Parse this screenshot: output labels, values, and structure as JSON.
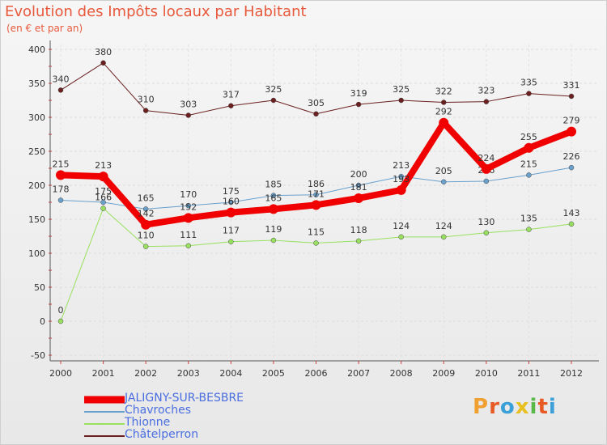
{
  "title": "Evolution des Impôts locaux par Habitant",
  "subtitle": "(en € et par an)",
  "brand": {
    "text": "Proxiti",
    "colors": [
      "#f0a030",
      "#e85a24",
      "#3ca0d8",
      "#e8c020",
      "#58b848",
      "#e85a24",
      "#3ca0d8"
    ]
  },
  "chart_data": {
    "type": "line",
    "title": "Evolution des Impôts locaux par Habitant",
    "subtitle": "(en € et par an)",
    "xlabel": "",
    "ylabel": "",
    "ylim": [
      -50,
      400
    ],
    "yticks": [
      -50,
      0,
      50,
      100,
      150,
      200,
      250,
      300,
      350,
      400
    ],
    "grid": true,
    "legend_position": "bottom-left",
    "x": [
      2000,
      2001,
      2002,
      2003,
      2004,
      2005,
      2006,
      2007,
      2008,
      2009,
      2010,
      2011,
      2012
    ],
    "series": [
      {
        "name": "Châtelperron",
        "color": "#6b1f1f",
        "width": 1,
        "values": [
          340,
          380,
          310,
          303,
          317,
          325,
          305,
          319,
          325,
          322,
          323,
          335,
          331
        ]
      },
      {
        "name": "Thionne",
        "color": "#99e060",
        "width": 1,
        "values": [
          0,
          166,
          110,
          111,
          117,
          119,
          115,
          118,
          124,
          124,
          130,
          135,
          143
        ]
      },
      {
        "name": "Chavroches",
        "color": "#6aa0cc",
        "width": 1,
        "values": [
          178,
          175,
          165,
          170,
          175,
          185,
          186,
          200,
          213,
          205,
          206,
          215,
          226
        ]
      },
      {
        "name": "JALIGNY-SUR-BESBRE",
        "color": "#f00000",
        "width": 8,
        "values": [
          215,
          213,
          142,
          152,
          160,
          165,
          171,
          181,
          193,
          292,
          224,
          255,
          279
        ]
      }
    ],
    "legend_order": [
      "JALIGNY-SUR-BESBRE",
      "Chavroches",
      "Thionne",
      "Châtelperron"
    ]
  }
}
